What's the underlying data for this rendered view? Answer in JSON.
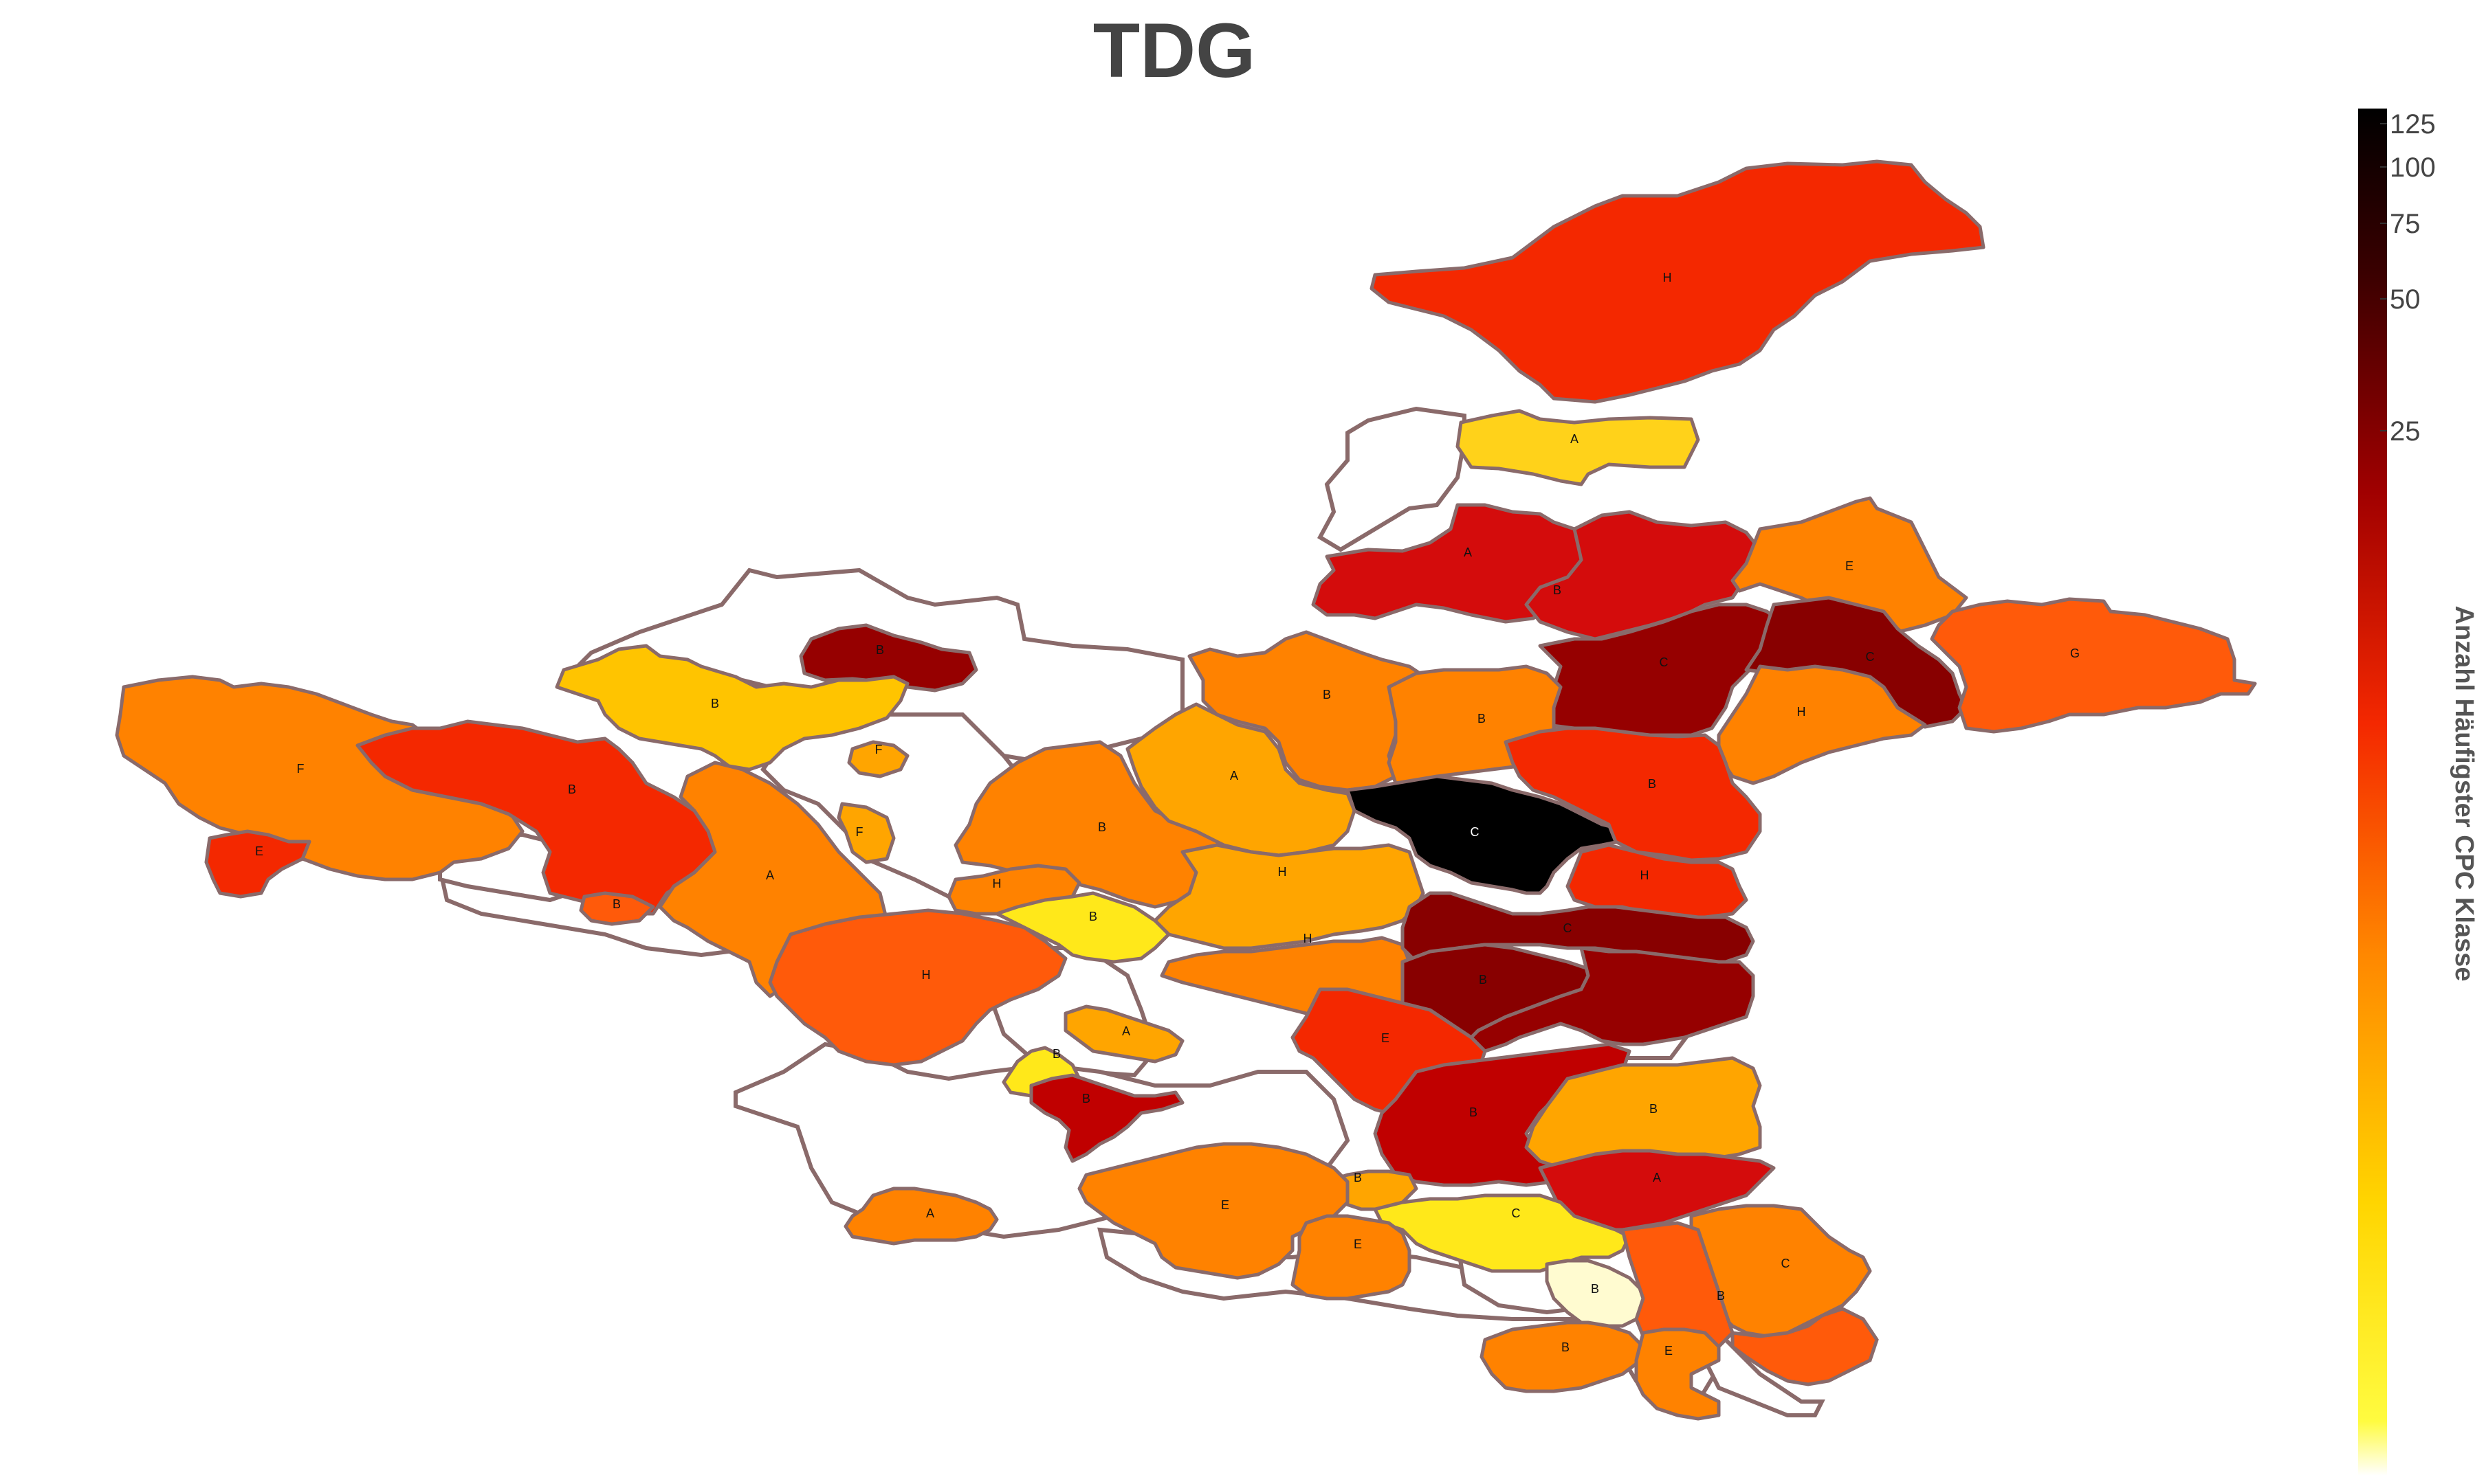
{
  "title": "TDG",
  "colorbar": {
    "title": "Anzahl Häufigster CPC Klasse",
    "ticks": [
      "125",
      "100",
      "75",
      "50",
      "25"
    ]
  },
  "colors": {
    "none": "#ffffff",
    "c1": "#fffbd0",
    "c2": "#ffe81a",
    "c3": "#ffd21a",
    "c4": "#ffc400",
    "c5": "#ffa500",
    "c6": "#ff8200",
    "c7": "#ff5a0a",
    "c8": "#f42800",
    "c9": "#d40c0c",
    "c10": "#c00000",
    "c11": "#960000",
    "c12": "#880000",
    "c13": "#000000",
    "border": "#8a6a6a"
  },
  "regions": [
    {
      "label": "H",
      "tone": "c8"
    },
    {
      "label": "A",
      "tone": "c3"
    },
    {
      "label": "A",
      "tone": "c9"
    },
    {
      "label": "B",
      "tone": "c9"
    },
    {
      "label": "E",
      "tone": "c6"
    },
    {
      "label": "C",
      "tone": "c11"
    },
    {
      "label": "C",
      "tone": "c12"
    },
    {
      "label": "G",
      "tone": "c7"
    },
    {
      "label": "H",
      "tone": "c6"
    },
    {
      "label": "B",
      "tone": "c11"
    },
    {
      "label": "B",
      "tone": "c4"
    },
    {
      "label": "F",
      "tone": "c5"
    },
    {
      "label": "F",
      "tone": "c6"
    },
    {
      "label": "B",
      "tone": "c8"
    },
    {
      "label": "E",
      "tone": "c8"
    },
    {
      "label": "B",
      "tone": "c7"
    },
    {
      "label": "A",
      "tone": "c6"
    },
    {
      "label": "F",
      "tone": "c5"
    },
    {
      "label": "B",
      "tone": "c6"
    },
    {
      "label": "B",
      "tone": "c6"
    },
    {
      "label": "A",
      "tone": "c5"
    },
    {
      "label": "B",
      "tone": "c6"
    },
    {
      "label": "C",
      "tone": "c13"
    },
    {
      "label": "B",
      "tone": "c8"
    },
    {
      "label": "H",
      "tone": "c8"
    },
    {
      "label": "H",
      "tone": "c6"
    },
    {
      "label": "H",
      "tone": "c5"
    },
    {
      "label": "B",
      "tone": "c2"
    },
    {
      "label": "H",
      "tone": "c6"
    },
    {
      "label": "H",
      "tone": "c7"
    },
    {
      "label": "C",
      "tone": "c12"
    },
    {
      "label": "B",
      "tone": "c12"
    },
    {
      "label": "",
      "tone": "c11"
    },
    {
      "label": "E",
      "tone": "c8"
    },
    {
      "label": "A",
      "tone": "c5"
    },
    {
      "label": "B",
      "tone": "c2"
    },
    {
      "label": "B",
      "tone": "c10"
    },
    {
      "label": "B",
      "tone": "c10"
    },
    {
      "label": "B",
      "tone": "c5"
    },
    {
      "label": "A",
      "tone": "c9"
    },
    {
      "label": "B",
      "tone": "c5"
    },
    {
      "label": "E",
      "tone": "c6"
    },
    {
      "label": "A",
      "tone": "c6"
    },
    {
      "label": "C",
      "tone": "c2"
    },
    {
      "label": "E",
      "tone": "c6"
    },
    {
      "label": "B",
      "tone": "c1"
    },
    {
      "label": "C",
      "tone": "c6"
    },
    {
      "label": "B",
      "tone": "c7"
    },
    {
      "label": "B",
      "tone": "c6"
    },
    {
      "label": "E",
      "tone": "c6"
    }
  ]
}
